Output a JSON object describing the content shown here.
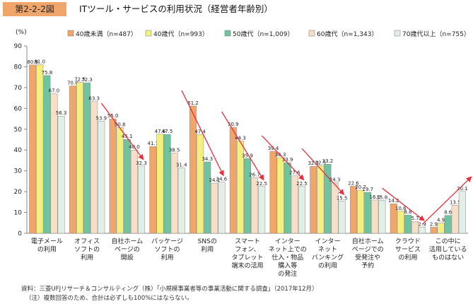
{
  "figure_label": "第2-2-2図",
  "title": "ITツール・サービスの利用状況（経営者年齢別）",
  "source": "資料：三菱UFJリサーチ＆コンサルティング（株）「小規模事業者等の事業活動に関する調査」（2017年12月）",
  "note": "（注）複数回答のため、合計は必ずしも100%にはならない。",
  "colors": {
    "series": [
      "#f0a66a",
      "#f4f07e",
      "#6fc39e",
      "#f6dfc6",
      "#e2efe6"
    ],
    "arrow": "#e8303c",
    "axis": "#888888"
  },
  "chart_data": {
    "type": "bar",
    "title": "ITツール・サービスの利用状況（経営者年齢別）",
    "ylabel": "(%)",
    "xlabel": "",
    "ylim": [
      0,
      90
    ],
    "yticks": [
      0,
      10,
      20,
      30,
      40,
      50,
      60,
      70,
      80,
      90
    ],
    "legend_position": "top",
    "categories": [
      "電子メール\nの利用",
      "オフィス\nソフトの\n利用",
      "自社ホーム\nページの\n開設",
      "パッケージ\nソフトの\n利用",
      "SNSの\n利用",
      "スマート\nフォン、\nタブレット\n端末の活用",
      "インター\nネット上での\n仕入・物品\n購入等\nの発注",
      "インター\nネット\nバンキング\nの利用",
      "自社ホーム\nページでの\n受発注や\n予約",
      "クラウド\nサービス\nの利用",
      "この中に\n活用している\nものはない"
    ],
    "series": [
      {
        "name": "40歳未満（n=487）",
        "values": [
          80.9,
          70.8,
          55.0,
          41.7,
          61.2,
          50.9,
          39.4,
          32.2,
          22.6,
          14.2,
          2.9
        ]
      },
      {
        "name": "40歳代（n=993）",
        "values": [
          81.0,
          72.5,
          50.8,
          47.6,
          47.4,
          44.3,
          36.3,
          32.5,
          20.7,
          10.6,
          4.9
        ]
      },
      {
        "name": "50歳代（n=1,009）",
        "values": [
          75.8,
          72.3,
          45.1,
          47.5,
          34.3,
          35.9,
          33.9,
          33.2,
          19.7,
          8.8,
          8.6
        ]
      },
      {
        "name": "60歳代（n=1,343）",
        "values": [
          67.0,
          63.3,
          40.0,
          38.5,
          24.1,
          26.7,
          27.6,
          24.3,
          16.0,
          5.7,
          13.5
        ]
      },
      {
        "name": "70歳代以上（n=755）",
        "values": [
          56.3,
          53.9,
          32.3,
          31.4,
          24.6,
          22.5,
          22.5,
          15.5,
          15.8,
          2.9,
          20.1
        ]
      }
    ],
    "trend_arrows": [
      {
        "category": "自社ホーム\nページの\n開設",
        "direction": "down"
      },
      {
        "category": "SNSの\n利用",
        "direction": "down"
      },
      {
        "category": "スマート\nフォン、\nタブレット\n端末の活用",
        "direction": "down"
      },
      {
        "category": "インター\nネット上での\n仕入・物品\n購入等\nの発注",
        "direction": "down"
      },
      {
        "category": "インター\nネット\nバンキング\nの利用",
        "direction": "down"
      },
      {
        "category": "クラウド\nサービス\nの利用",
        "direction": "down"
      },
      {
        "category": "この中に\n活用している\nものはない",
        "direction": "up"
      }
    ]
  }
}
